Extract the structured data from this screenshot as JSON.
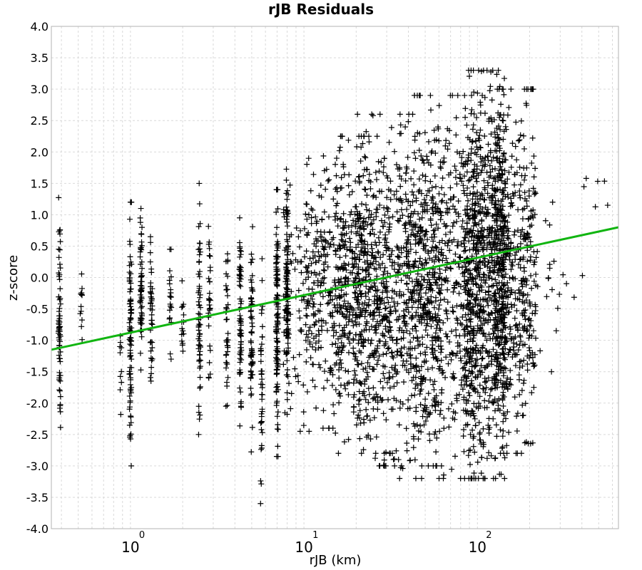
{
  "chart_data": {
    "type": "scatter",
    "title": "rJB Residuals",
    "xlabel": "rJB (km)",
    "ylabel": "z-score",
    "xscale": "log",
    "xlim": [
      0.35,
      650
    ],
    "ylim": [
      -4.0,
      4.0
    ],
    "grid": true,
    "marker": "plus",
    "y_ticks": [
      "4.0",
      "3.5",
      "3.0",
      "2.5",
      "2.0",
      "1.5",
      "1.0",
      "0.5",
      "0.0",
      "-0.5",
      "-1.0",
      "-1.5",
      "-2.0",
      "-2.5",
      "-3.0",
      "-3.5",
      "-4.0"
    ],
    "x_ticks": [
      {
        "value": 1,
        "base": "10",
        "exp": "0"
      },
      {
        "value": 10,
        "base": "10",
        "exp": "1"
      },
      {
        "value": 100,
        "base": "10",
        "exp": "2"
      }
    ],
    "trend_line": {
      "x": [
        0.35,
        650
      ],
      "y": [
        -1.15,
        0.8
      ],
      "color": "#11b511"
    },
    "clusters": [
      {
        "x": 0.39,
        "y_range": [
          -2.6,
          1.45
        ],
        "n": 70
      },
      {
        "x": 0.52,
        "y_range": [
          -1.45,
          0.35
        ],
        "n": 12
      },
      {
        "x": 0.88,
        "y_range": [
          -2.9,
          -0.4
        ],
        "n": 10
      },
      {
        "x": 1.0,
        "y_range": [
          -3.0,
          1.2
        ],
        "n": 90
      },
      {
        "x": 1.15,
        "y_range": [
          -1.5,
          1.1
        ],
        "n": 60
      },
      {
        "x": 1.32,
        "y_range": [
          -1.65,
          0.65
        ],
        "n": 40
      },
      {
        "x": 1.7,
        "y_range": [
          -1.3,
          0.7
        ],
        "n": 20
      },
      {
        "x": 2.0,
        "y_range": [
          -1.3,
          0.0
        ],
        "n": 15
      },
      {
        "x": 2.5,
        "y_range": [
          -2.5,
          1.7
        ],
        "n": 60
      },
      {
        "x": 2.85,
        "y_range": [
          -1.6,
          0.9
        ],
        "n": 30
      },
      {
        "x": 3.6,
        "y_range": [
          -2.3,
          0.55
        ],
        "n": 40
      },
      {
        "x": 4.3,
        "y_range": [
          -2.5,
          0.95
        ],
        "n": 70
      },
      {
        "x": 5.0,
        "y_range": [
          -3.05,
          0.9
        ],
        "n": 60
      },
      {
        "x": 5.7,
        "y_range": [
          -3.6,
          0.3
        ],
        "n": 40
      },
      {
        "x": 7.0,
        "y_range": [
          -2.85,
          1.4
        ],
        "n": 120
      },
      {
        "x": 8.0,
        "y_range": [
          -2.3,
          1.55
        ],
        "n": 100
      },
      {
        "x": 11.5,
        "y_range": [
          -2.45,
          1.9
        ],
        "n": 180
      },
      {
        "x": 15.0,
        "y_range": [
          -2.4,
          2.1
        ],
        "n": 250
      },
      {
        "x": 22.0,
        "y_range": [
          -2.8,
          2.25
        ],
        "n": 350
      },
      {
        "x": 35.0,
        "y_range": [
          -3.0,
          2.6
        ],
        "n": 550
      },
      {
        "x": 60.0,
        "y_range": [
          -3.2,
          2.9
        ],
        "n": 700
      },
      {
        "x": 110.0,
        "y_range": [
          -3.2,
          3.3
        ],
        "n": 800
      },
      {
        "x": 165.0,
        "y_range": [
          -2.8,
          3.0
        ],
        "n": 500
      },
      {
        "x": 230.0,
        "y_range": [
          -1.5,
          1.2
        ],
        "n": 20
      },
      {
        "x": 320.0,
        "y_range": [
          -0.9,
          0.6
        ],
        "n": 6
      },
      {
        "x": 520.0,
        "y_range": [
          0.5,
          2.15
        ],
        "n": 6
      }
    ]
  }
}
